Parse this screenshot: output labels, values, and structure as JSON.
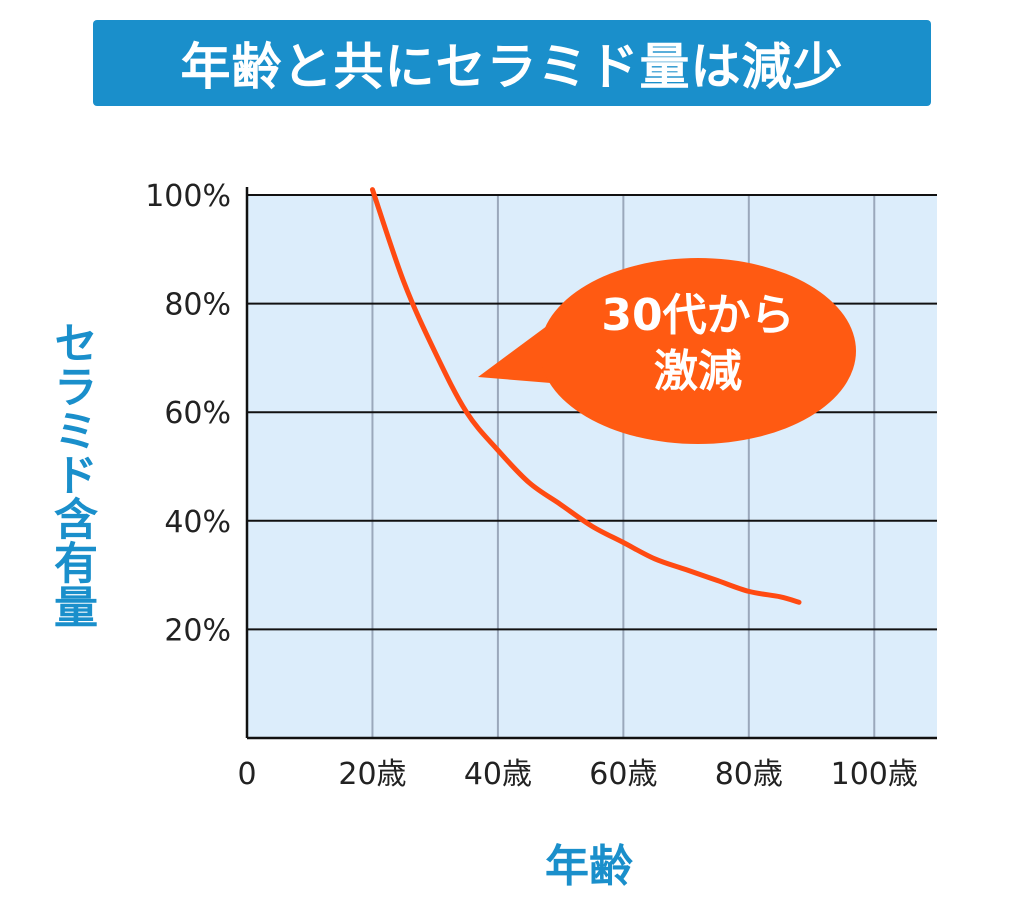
{
  "title": "年齢と共にセラミド量は減少",
  "colors": {
    "title_bg": "#1a8fcb",
    "axis_title": "#1a8fcb",
    "plot_bg": "#dcedfb",
    "curve": "#ff4a12",
    "callout": "#ff5a12",
    "grid_h": "#111111",
    "grid_v": "#9aa8bb"
  },
  "chart_data": {
    "type": "line",
    "ylabel": "セラミド含有量",
    "xlabel": "年齢",
    "xlim": [
      0,
      110
    ],
    "ylim": [
      0,
      100
    ],
    "x_ticks": [
      {
        "value": 0,
        "label": "0"
      },
      {
        "value": 20,
        "label": "20歳"
      },
      {
        "value": 40,
        "label": "40歳"
      },
      {
        "value": 60,
        "label": "60歳"
      },
      {
        "value": 80,
        "label": "80歳"
      },
      {
        "value": 100,
        "label": "100歳"
      }
    ],
    "y_ticks": [
      {
        "value": 20,
        "label": "20%"
      },
      {
        "value": 40,
        "label": "40%"
      },
      {
        "value": 60,
        "label": "60%"
      },
      {
        "value": 80,
        "label": "80%"
      },
      {
        "value": 100,
        "label": "100%"
      }
    ],
    "grid": true,
    "series": [
      {
        "x": [
          20,
          25,
          30,
          35,
          40,
          45,
          50,
          55,
          60,
          65,
          70,
          75,
          80,
          85,
          88
        ],
        "y": [
          101,
          84,
          71,
          60,
          53,
          47,
          43,
          39,
          36,
          33,
          31,
          29,
          27,
          26,
          25
        ]
      }
    ],
    "annotations": [
      {
        "text_lines": [
          "30代から",
          "激減"
        ]
      }
    ]
  }
}
